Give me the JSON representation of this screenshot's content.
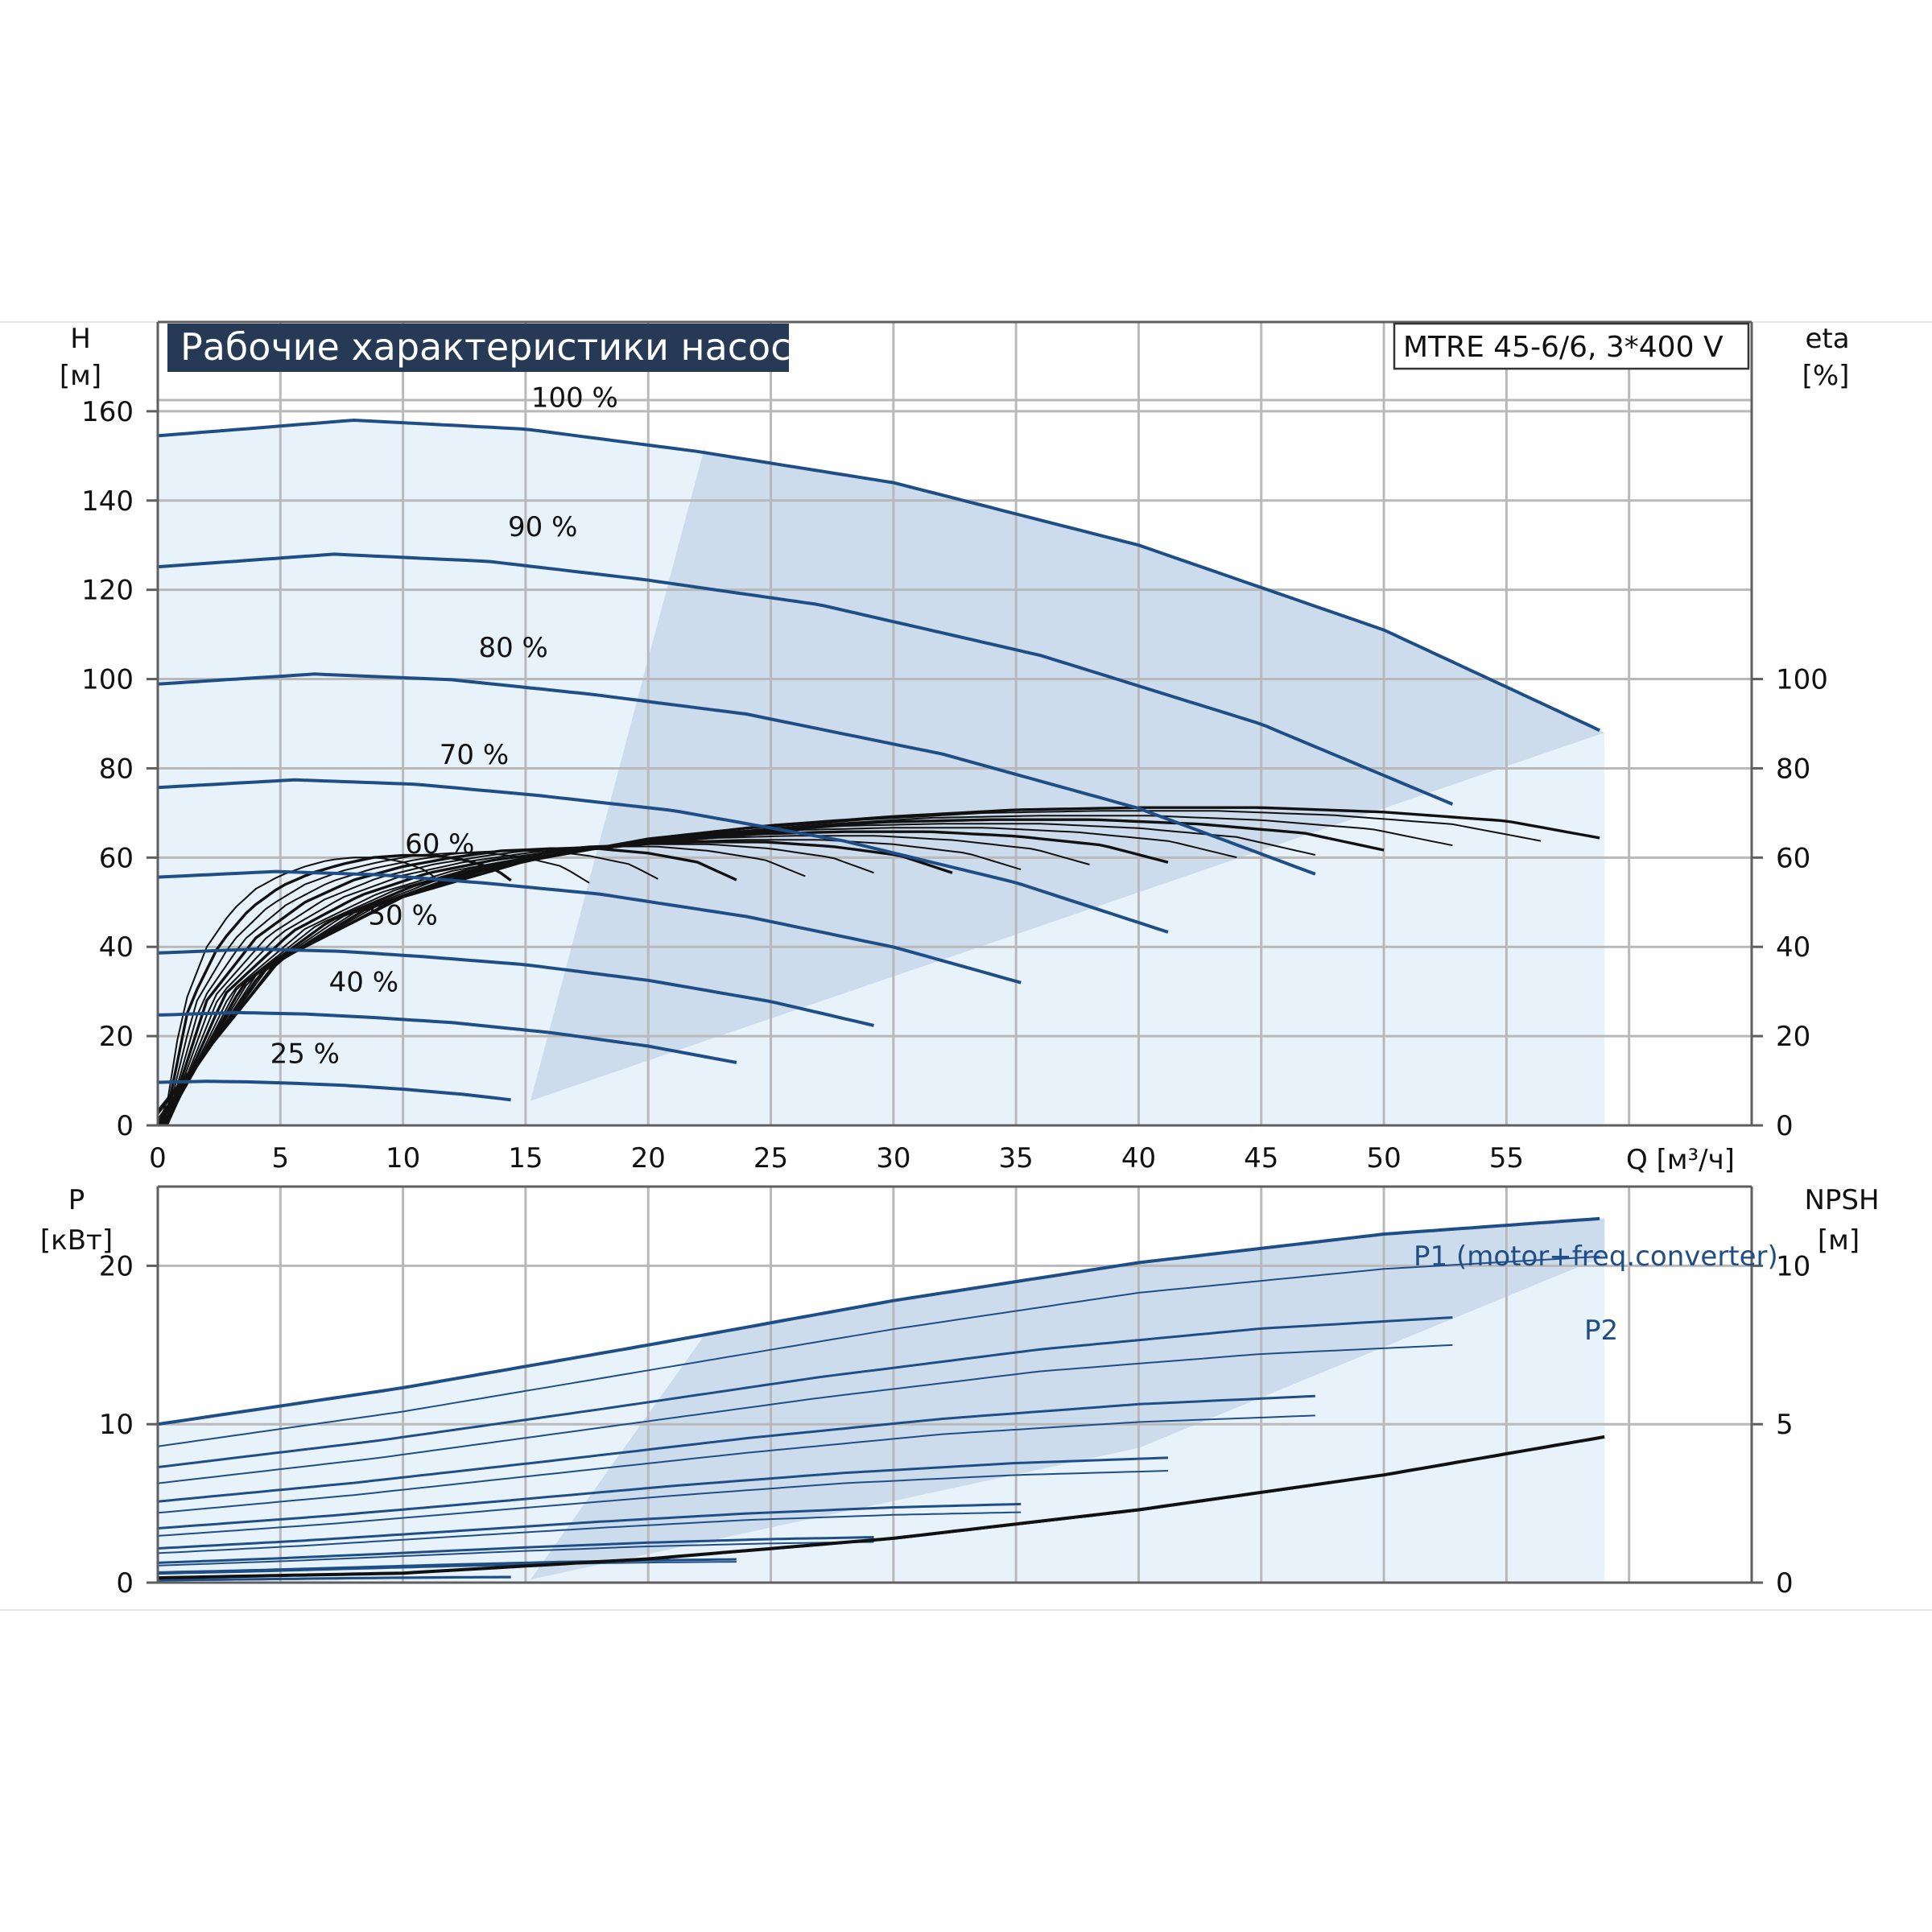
{
  "colors": {
    "curve_blue": "#1f4e87",
    "region_fill": "#ccdcec",
    "light_fill": "#e8f2fb",
    "eff_line": "#111111",
    "title_bg": "#263a55"
  },
  "chart_data": [
    {
      "type": "line",
      "panel": "pump-head-efficiency",
      "title": "Рабочие характеристики насоса",
      "model": "MTRE 45-6/6, 3*400 V",
      "xlabel": "Q [м³/ч]",
      "ylabel_left": {
        "name": "H",
        "unit": "[м]"
      },
      "ylabel_right": {
        "name": "eta",
        "unit": "[%]"
      },
      "xlim": [
        0,
        65
      ],
      "ylim_left": [
        0,
        180
      ],
      "ylim_right": [
        0,
        180
      ],
      "x_ticks": [
        0,
        5,
        10,
        15,
        20,
        25,
        30,
        35,
        40,
        45,
        50,
        55
      ],
      "x_tick_labels": [
        "0",
        "5",
        "10",
        "15",
        "20",
        "25",
        "30",
        "35",
        "40",
        "45",
        "50",
        "55"
      ],
      "y_left_ticks": [
        0,
        20,
        40,
        60,
        80,
        100,
        120,
        140,
        160
      ],
      "y_left_tick_labels": [
        "0",
        "20",
        "40",
        "60",
        "80",
        "100",
        "120",
        "140",
        "160"
      ],
      "y_right_ticks": [
        0,
        20,
        40,
        60,
        80,
        100
      ],
      "y_right_tick_labels": [
        "0",
        "20",
        "40",
        "60",
        "80",
        "100"
      ],
      "grid": true,
      "head_curves": [
        {
          "name": "100 %",
          "speed": 1.0,
          "label_q": 17,
          "label_h": 161
        },
        {
          "name": "90 %",
          "speed": 0.9,
          "label_q": 15.7,
          "label_h": 132
        },
        {
          "name": "80 %",
          "speed": 0.8,
          "label_q": 14.5,
          "label_h": 105
        },
        {
          "name": "70 %",
          "speed": 0.7,
          "label_q": 12.9,
          "label_h": 81
        },
        {
          "name": "60 %",
          "speed": 0.6,
          "label_q": 11.5,
          "label_h": 61
        },
        {
          "name": "50 %",
          "speed": 0.5,
          "label_q": 10,
          "label_h": 45
        },
        {
          "name": "40 %",
          "speed": 0.4,
          "label_q": 8.4,
          "label_h": 30
        },
        {
          "name": "25 %",
          "speed": 0.25,
          "label_q": 6,
          "label_h": 14
        }
      ],
      "head_curve_100": {
        "q": [
          0,
          8,
          15,
          22,
          30,
          40,
          50,
          59
        ],
        "h": [
          154.5,
          158,
          156,
          151,
          144,
          130,
          111,
          88
        ]
      },
      "operating_region": {
        "q": [
          0,
          0,
          22.3,
          59,
          15.2
        ],
        "h": [
          0,
          154.5,
          152,
          88,
          5.5
        ]
      },
      "efficiency_curve_100": {
        "q": [
          0,
          5,
          10,
          15,
          20,
          25,
          30,
          35,
          40,
          45,
          50,
          55,
          59
        ],
        "eta": [
          0,
          34,
          48,
          56,
          61,
          64,
          66,
          67.5,
          68,
          68,
          67,
          65,
          61
        ]
      }
    },
    {
      "type": "line",
      "panel": "power-npsh",
      "xlim": [
        0,
        65
      ],
      "ylabel_left": {
        "name": "P",
        "unit": "[кВт]"
      },
      "ylabel_right": {
        "name": "NPSH",
        "unit": "[м]"
      },
      "ylim_left": [
        0,
        25
      ],
      "ylim_right": [
        0,
        12.5
      ],
      "y_left_ticks": [
        0,
        10,
        20
      ],
      "y_left_tick_labels": [
        "0",
        "10",
        "20"
      ],
      "y_right_ticks": [
        0,
        5,
        10
      ],
      "y_right_tick_labels": [
        "0",
        "5",
        "10"
      ],
      "grid": true,
      "series": [
        {
          "name": "P1 (motor+freq.converter)",
          "q": [
            0,
            10,
            20,
            30,
            40,
            50,
            59
          ],
          "p": [
            10,
            12.3,
            15,
            17.8,
            20.2,
            22,
            23
          ]
        },
        {
          "name": "P2",
          "q": [
            0,
            10,
            20,
            30,
            40,
            50,
            59
          ],
          "p": [
            8.6,
            10.8,
            13.4,
            16,
            18.3,
            19.8,
            20.6
          ]
        }
      ],
      "npsh_curve": {
        "q": [
          0,
          10,
          20,
          30,
          40,
          50,
          59
        ],
        "npsh": [
          0.15,
          0.3,
          0.75,
          1.4,
          2.3,
          3.4,
          4.6
        ]
      }
    }
  ]
}
